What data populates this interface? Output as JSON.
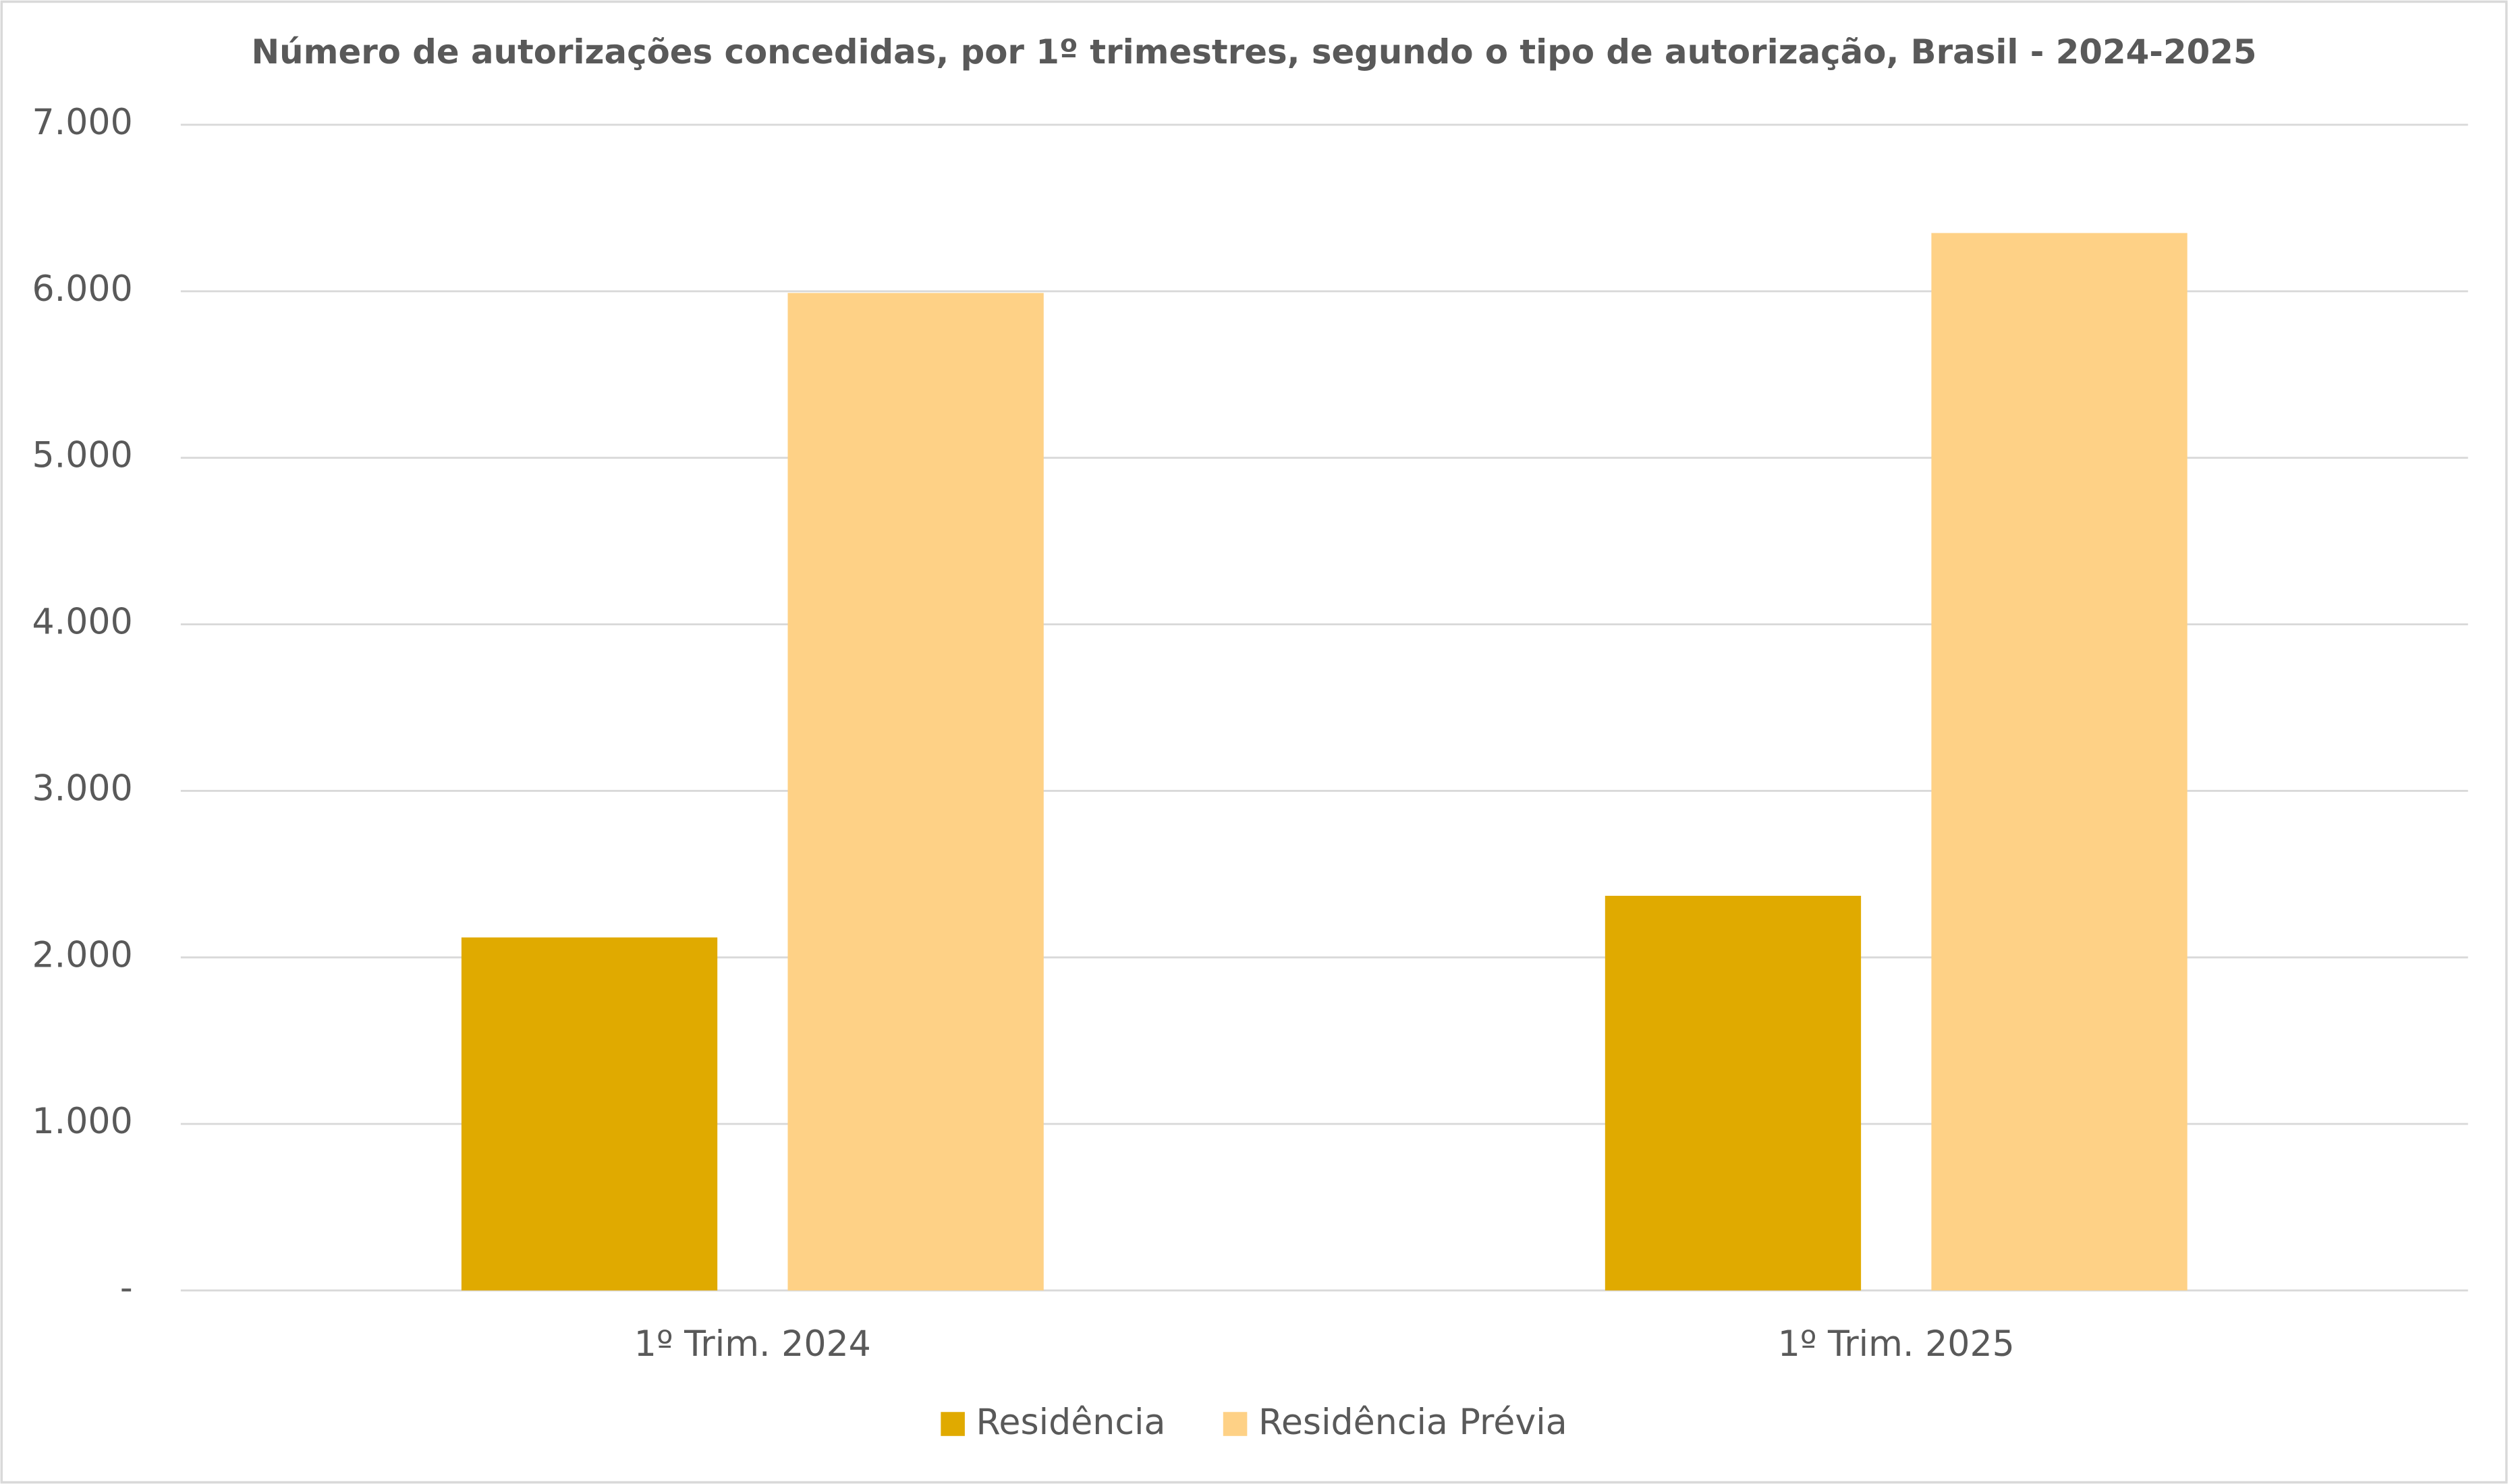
{
  "chart_data": {
    "type": "bar",
    "title": "Número de autorizações concedidas, por 1º trimestres, segundo o tipo de autorização, Brasil - 2024-2025",
    "categories": [
      "1º Trim. 2024",
      "1º Trim. 2025"
    ],
    "series": [
      {
        "name": "Residência",
        "color": "#e0aa00",
        "values": [
          2120,
          2370
        ]
      },
      {
        "name": "Residência Prévia",
        "color": "#fed186",
        "values": [
          5990,
          6350
        ]
      }
    ],
    "ylim": [
      0,
      7000
    ],
    "yticks": [
      {
        "value": 0,
        "label": "-"
      },
      {
        "value": 1000,
        "label": "1.000"
      },
      {
        "value": 2000,
        "label": "2.000"
      },
      {
        "value": 3000,
        "label": "3.000"
      },
      {
        "value": 4000,
        "label": "4.000"
      },
      {
        "value": 5000,
        "label": "5.000"
      },
      {
        "value": 6000,
        "label": "6.000"
      },
      {
        "value": 7000,
        "label": "7.000"
      }
    ],
    "grid": true,
    "legend": "bottom"
  }
}
